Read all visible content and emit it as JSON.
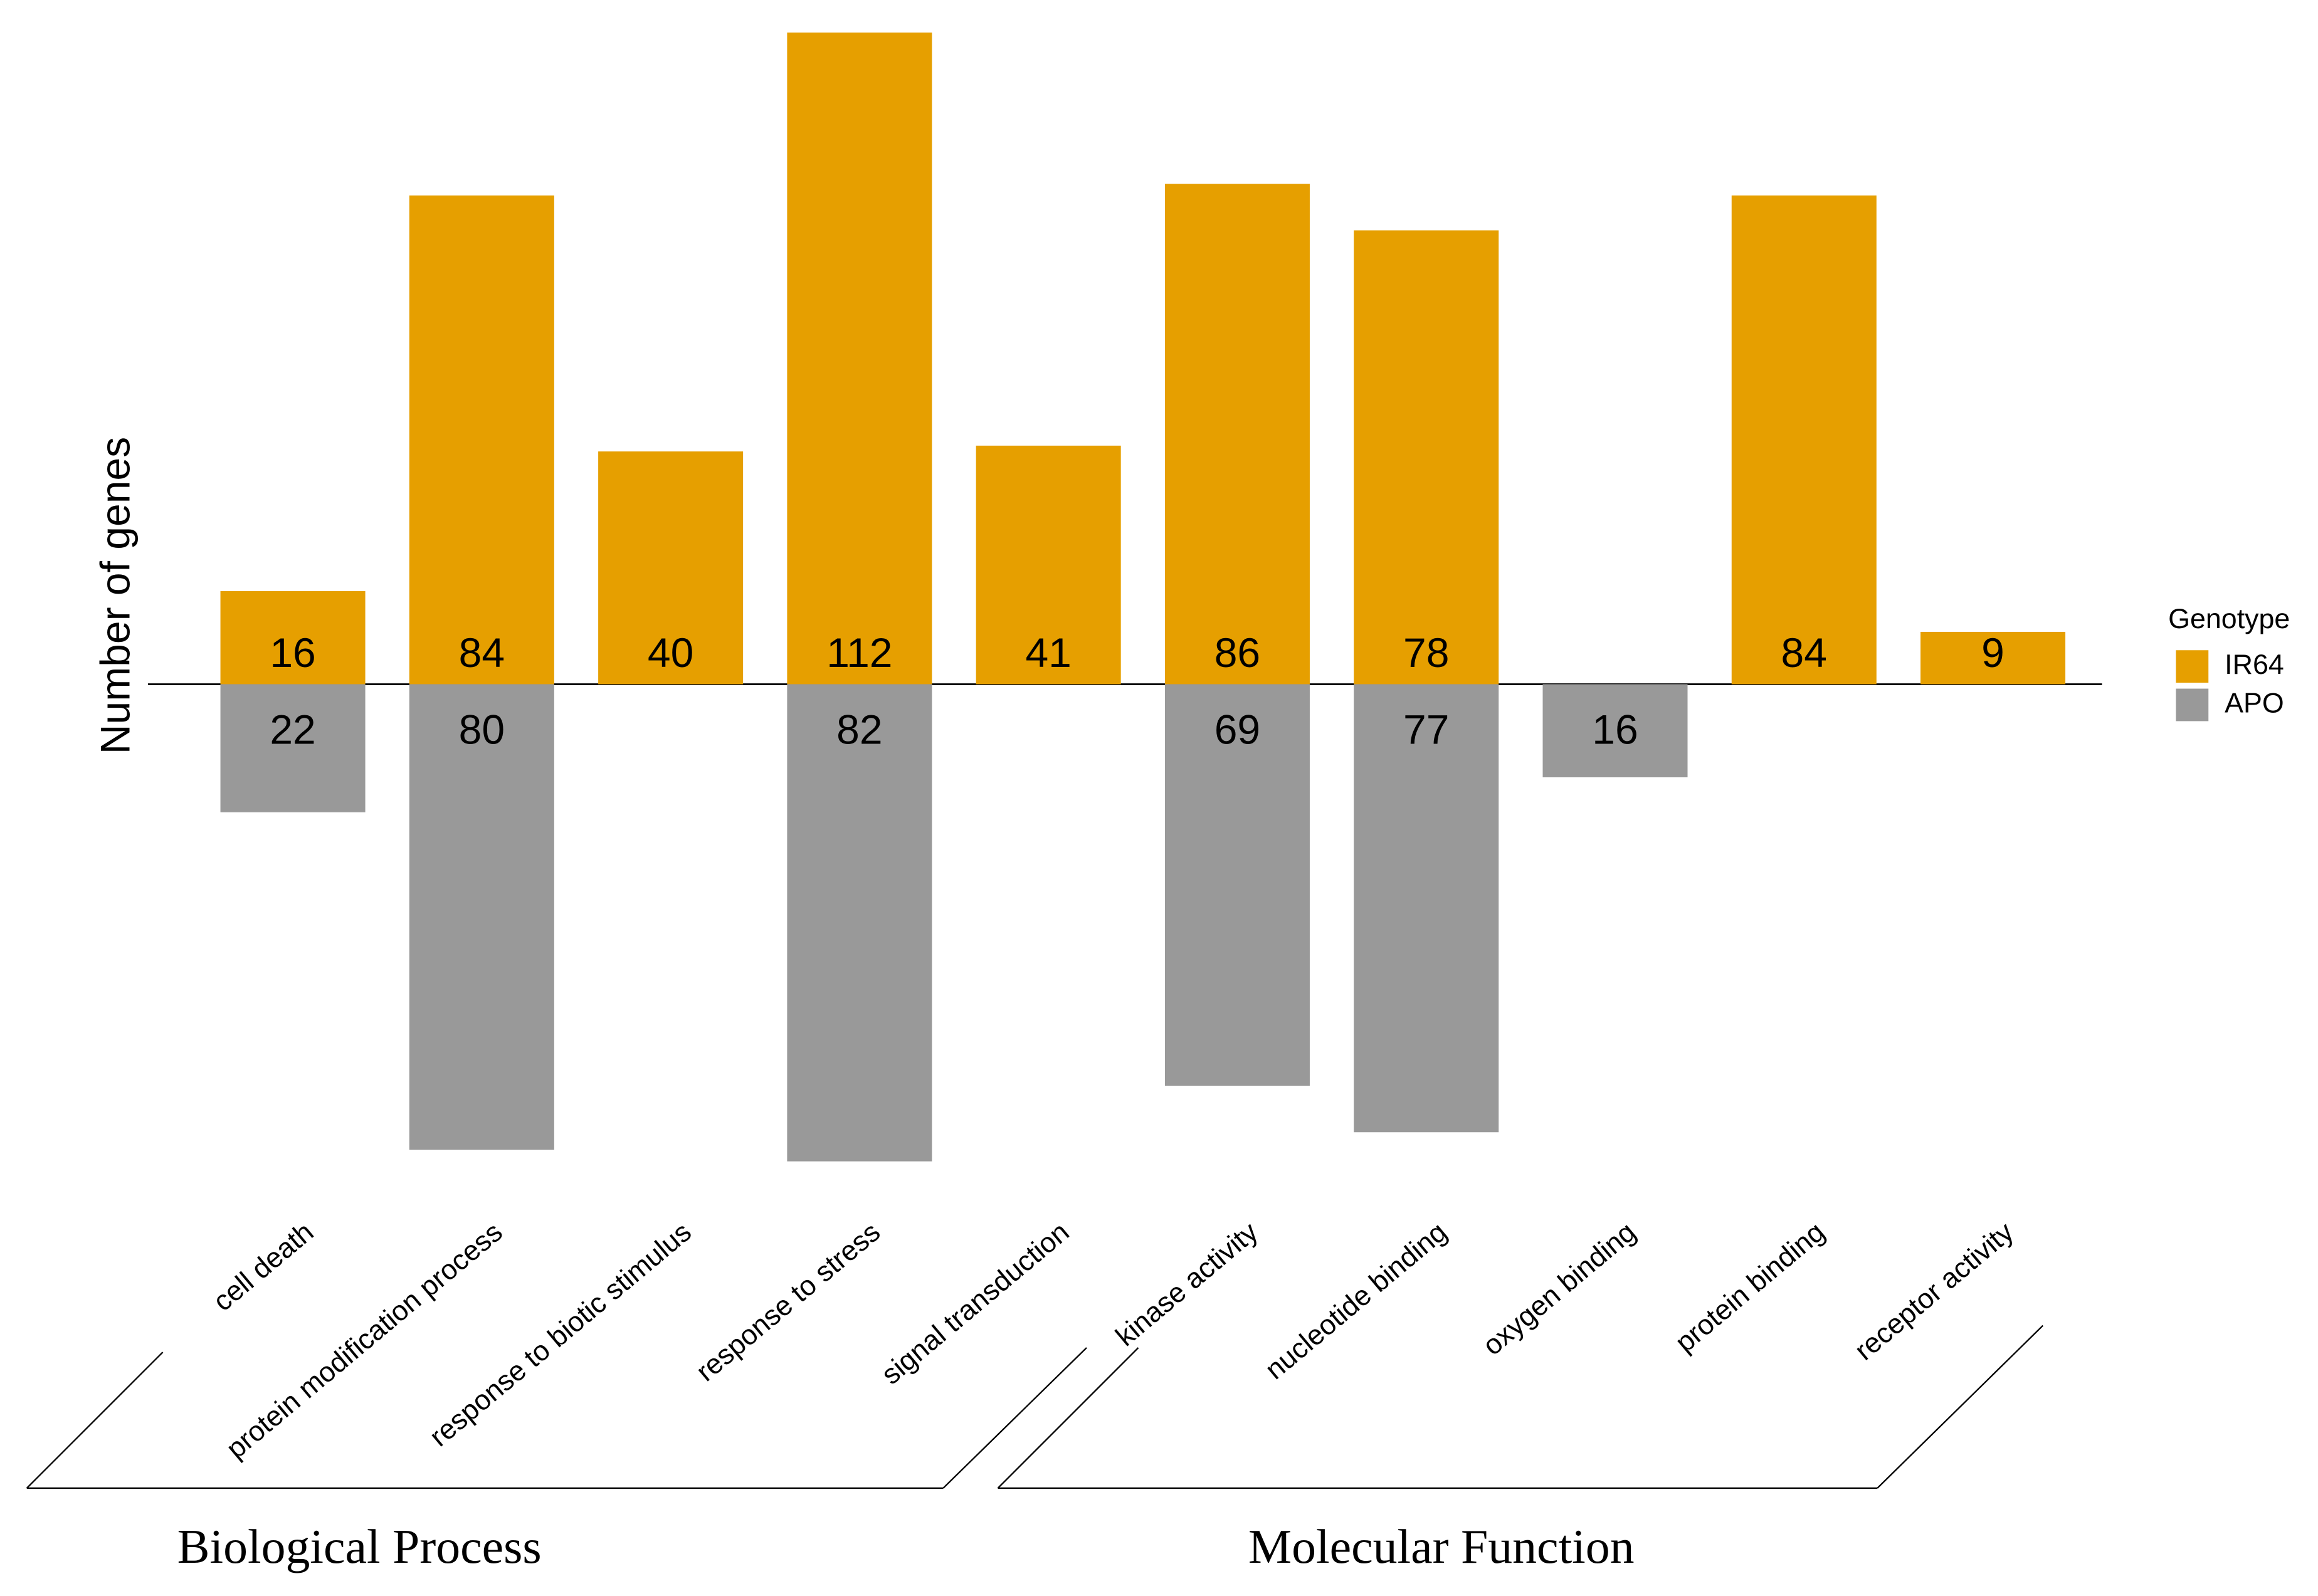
{
  "chart_data": {
    "type": "diverging-bar",
    "y_label": "Number of genes",
    "categories": [
      "cell death",
      "protein modification process",
      "response to biotic stimulus",
      "response to stress",
      "signal transduction",
      "kinase activity",
      "nucleotide binding",
      "oxygen binding",
      "protein binding",
      "receptor activity"
    ],
    "series": [
      {
        "name": "IR64",
        "color": "#E69F00",
        "values": [
          16,
          84,
          40,
          112,
          41,
          86,
          78,
          null,
          84,
          9
        ]
      },
      {
        "name": "APO",
        "color": "#999999",
        "values": [
          22,
          80,
          null,
          82,
          null,
          69,
          77,
          16,
          null,
          null
        ]
      }
    ],
    "legend_title": "Genotype",
    "groups": [
      {
        "label": "Biological Process",
        "count": 5
      },
      {
        "label": "Molecular Function",
        "count": 5
      }
    ]
  }
}
